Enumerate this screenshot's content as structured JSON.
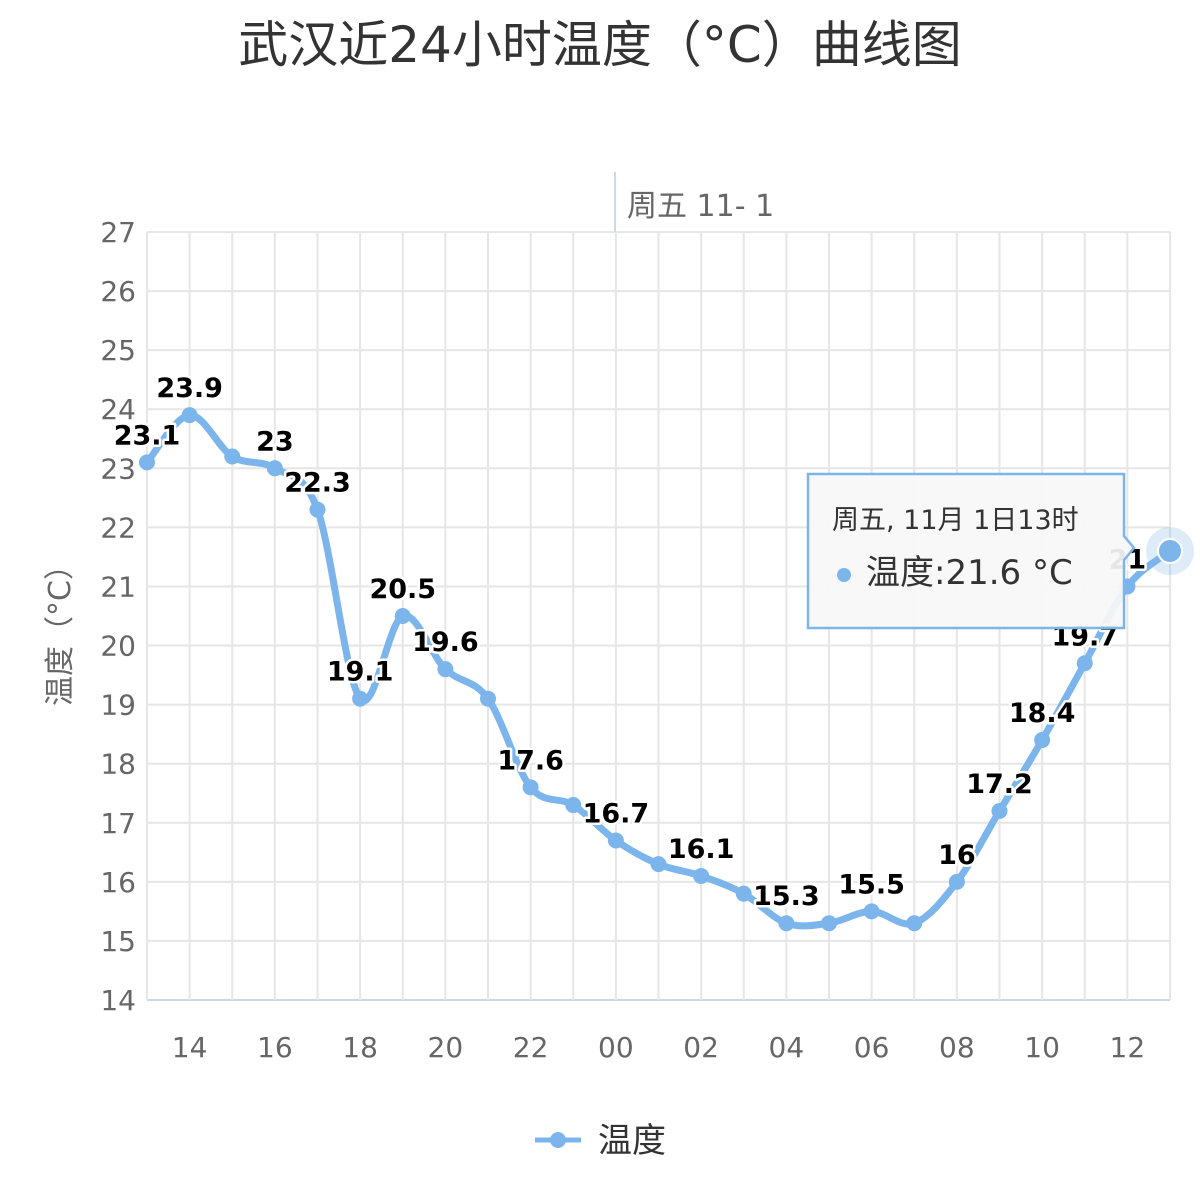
{
  "chart_data": {
    "type": "line",
    "title": "武汉近24小时温度（°C）曲线图",
    "ylabel": "温度（°C）",
    "ylim": [
      14,
      27
    ],
    "yticks": [
      "14",
      "15",
      "16",
      "17",
      "18",
      "19",
      "20",
      "21",
      "22",
      "23",
      "24",
      "25",
      "26",
      "27"
    ],
    "xticks": [
      "14",
      "16",
      "18",
      "20",
      "22",
      "00",
      "02",
      "04",
      "06",
      "08",
      "10",
      "12"
    ],
    "plot_line_label": "周五 11- 1",
    "x": [
      "13",
      "14",
      "15",
      "16",
      "17",
      "18",
      "19",
      "20",
      "21",
      "22",
      "23",
      "00",
      "01",
      "02",
      "03",
      "04",
      "05",
      "06",
      "07",
      "08",
      "09",
      "10",
      "11",
      "12",
      "13"
    ],
    "series": [
      {
        "name": "温度",
        "color": "#7cb5ec",
        "values": [
          23.1,
          23.9,
          23.2,
          23.0,
          22.3,
          19.1,
          20.5,
          19.6,
          19.1,
          17.6,
          17.3,
          16.7,
          16.3,
          16.1,
          15.8,
          15.3,
          15.3,
          15.5,
          15.3,
          16.0,
          17.2,
          18.4,
          19.7,
          21.0,
          21.6
        ],
        "labels": [
          "23.1",
          "23.9",
          "",
          "23",
          "22.3",
          "19.1",
          "20.5",
          "19.6",
          "",
          "17.6",
          "",
          "16.7",
          "",
          "16.1",
          "",
          "15.3",
          "",
          "15.5",
          "",
          "16",
          "17.2",
          "18.4",
          "19.7",
          "21",
          ""
        ]
      }
    ],
    "legend": {
      "position": "bottom-center",
      "items": [
        "温度"
      ]
    },
    "grid": true
  },
  "tooltip": {
    "title": "周五, 11月 1日13时",
    "series_name": "温度",
    "value_text": "温度:21.6 °C"
  }
}
